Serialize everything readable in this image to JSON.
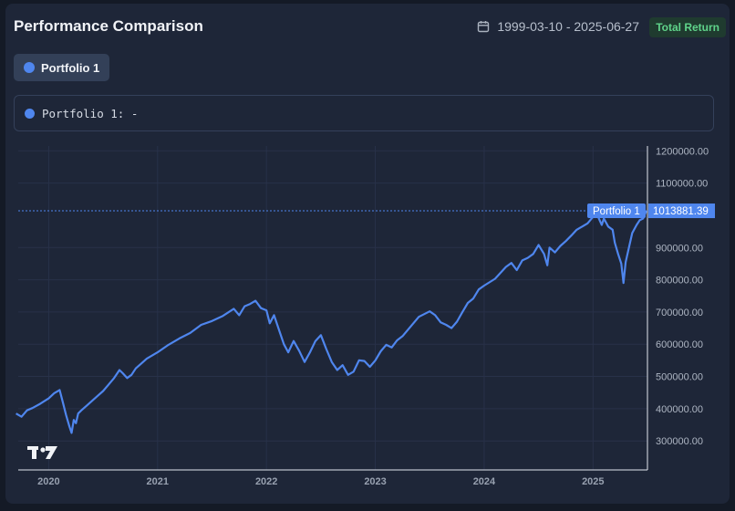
{
  "header": {
    "title": "Performance Comparison",
    "date_range": "1999-03-10 - 2025-06-27",
    "badge": "Total Return"
  },
  "series_button": {
    "label": "Portfolio 1"
  },
  "legend": {
    "text": "Portfolio 1: -"
  },
  "colors": {
    "series": "#4f86ee",
    "background": "#1e2638",
    "grid": "#283149",
    "badge_bg": "#1f3b2f",
    "badge_text": "#5fd38a"
  },
  "chart_data": {
    "type": "line",
    "title": "",
    "xlabel": "",
    "ylabel": "",
    "ylim": [
      210000,
      1215000
    ],
    "x_ticks": [
      {
        "label": "2020",
        "t": 2020.0
      },
      {
        "label": "2021",
        "t": 2021.0
      },
      {
        "label": "2022",
        "t": 2022.0
      },
      {
        "label": "2023",
        "t": 2023.0
      },
      {
        "label": "2024",
        "t": 2024.0
      },
      {
        "label": "2025",
        "t": 2025.0
      }
    ],
    "y_ticks": [
      {
        "label": "1200000.00",
        "value": 1200000
      },
      {
        "label": "1100000.00",
        "value": 1100000
      },
      {
        "label": "900000.00",
        "value": 900000
      },
      {
        "label": "800000.00",
        "value": 800000
      },
      {
        "label": "700000.00",
        "value": 700000
      },
      {
        "label": "600000.00",
        "value": 600000
      },
      {
        "label": "500000.00",
        "value": 500000
      },
      {
        "label": "400000.00",
        "value": 400000
      },
      {
        "label": "300000.00",
        "value": 300000
      }
    ],
    "last_value": {
      "series": "Portfolio 1",
      "label": "1013881.39",
      "value": 1013881.39
    },
    "series": [
      {
        "name": "Portfolio 1",
        "t": [
          2019.7,
          2019.75,
          2019.8,
          2019.85,
          2019.92,
          2020.0,
          2020.05,
          2020.1,
          2020.13,
          2020.16,
          2020.19,
          2020.21,
          2020.23,
          2020.25,
          2020.27,
          2020.3,
          2020.35,
          2020.4,
          2020.45,
          2020.5,
          2020.55,
          2020.6,
          2020.65,
          2020.68,
          2020.72,
          2020.76,
          2020.8,
          2020.85,
          2020.9,
          2021.0,
          2021.1,
          2021.2,
          2021.3,
          2021.4,
          2021.5,
          2021.6,
          2021.7,
          2021.75,
          2021.8,
          2021.85,
          2021.9,
          2021.95,
          2022.0,
          2022.03,
          2022.07,
          2022.12,
          2022.16,
          2022.2,
          2022.25,
          2022.3,
          2022.35,
          2022.4,
          2022.45,
          2022.5,
          2022.55,
          2022.6,
          2022.65,
          2022.7,
          2022.75,
          2022.8,
          2022.85,
          2022.9,
          2022.95,
          2023.0,
          2023.05,
          2023.1,
          2023.15,
          2023.2,
          2023.25,
          2023.3,
          2023.4,
          2023.5,
          2023.55,
          2023.6,
          2023.65,
          2023.7,
          2023.75,
          2023.8,
          2023.85,
          2023.9,
          2023.95,
          2024.0,
          2024.1,
          2024.2,
          2024.25,
          2024.3,
          2024.35,
          2024.4,
          2024.45,
          2024.5,
          2024.55,
          2024.58,
          2024.6,
          2024.65,
          2024.7,
          2024.75,
          2024.8,
          2024.85,
          2024.9,
          2024.95,
          2025.0,
          2025.04,
          2025.08,
          2025.1,
          2025.14,
          2025.18,
          2025.2,
          2025.23,
          2025.26,
          2025.28,
          2025.3,
          2025.33,
          2025.36,
          2025.4,
          2025.43,
          2025.46,
          2025.49
        ],
        "values": [
          385000,
          375000,
          395000,
          402000,
          415000,
          432000,
          448000,
          458000,
          420000,
          380000,
          345000,
          325000,
          365000,
          355000,
          385000,
          395000,
          410000,
          425000,
          440000,
          455000,
          475000,
          495000,
          520000,
          510000,
          495000,
          505000,
          525000,
          540000,
          555000,
          575000,
          598000,
          618000,
          635000,
          660000,
          672000,
          688000,
          710000,
          690000,
          718000,
          725000,
          735000,
          712000,
          705000,
          665000,
          690000,
          640000,
          600000,
          575000,
          610000,
          580000,
          545000,
          575000,
          610000,
          628000,
          585000,
          545000,
          520000,
          535000,
          505000,
          515000,
          550000,
          548000,
          530000,
          550000,
          578000,
          598000,
          590000,
          612000,
          625000,
          645000,
          685000,
          702000,
          690000,
          668000,
          660000,
          650000,
          670000,
          700000,
          728000,
          742000,
          770000,
          782000,
          803000,
          840000,
          852000,
          830000,
          860000,
          868000,
          880000,
          908000,
          880000,
          845000,
          900000,
          885000,
          905000,
          920000,
          937000,
          955000,
          965000,
          975000,
          995000,
          1000000,
          970000,
          990000,
          965000,
          955000,
          915000,
          880000,
          850000,
          790000,
          855000,
          900000,
          945000,
          970000,
          985000,
          990000,
          1013881.39
        ]
      }
    ]
  }
}
